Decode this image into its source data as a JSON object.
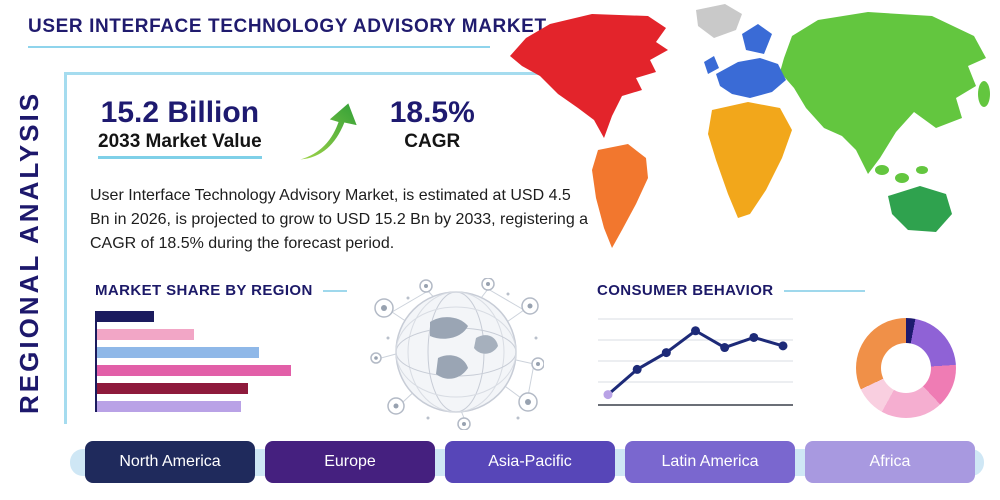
{
  "page": {
    "title": "USER INTERFACE TECHNOLOGY ADVISORY MARKET",
    "side_label": "REGIONAL ANALYSIS"
  },
  "stats": {
    "market_value": "15.2 Billion",
    "market_value_label": "2033 Market Value",
    "cagr_value": "18.5%",
    "cagr_label": "CAGR"
  },
  "description": "User Interface Technology Advisory Market, is estimated at USD 4.5 Bn in 2026, is projected to grow to USD 15.2 Bn by 2033, registering a CAGR of 18.5% during the forecast period.",
  "sections": {
    "market_share_title": "MARKET SHARE BY REGION",
    "consumer_behavior_title": "CONSUMER BEHAVIOR"
  },
  "regions": [
    {
      "label": "North America",
      "color": "#1f2a5c"
    },
    {
      "label": "Europe",
      "color": "#45207f"
    },
    {
      "label": "Asia-Pacific",
      "color": "#5746b8"
    },
    {
      "label": "Latin America",
      "color": "#7a67cf"
    },
    {
      "label": "Africa",
      "color": "#a899e0"
    }
  ],
  "map": {
    "continents": [
      {
        "name": "north-america",
        "color": "#e3242b"
      },
      {
        "name": "greenland",
        "color": "#c9c9c9"
      },
      {
        "name": "south-america",
        "color": "#f2772e"
      },
      {
        "name": "europe",
        "color": "#3a6bd6"
      },
      {
        "name": "africa",
        "color": "#f2a71b"
      },
      {
        "name": "asia",
        "color": "#63c63f"
      },
      {
        "name": "australia",
        "color": "#2fa24e"
      }
    ]
  },
  "chart_data": [
    {
      "type": "bar",
      "orientation": "horizontal",
      "title": "Market Share by Region",
      "values": [
        16,
        27,
        45,
        54,
        42,
        40
      ],
      "estimated": true,
      "xlim": [
        0,
        60
      ],
      "colors": [
        "#1b1b5e",
        "#f2a6c6",
        "#8fb8e8",
        "#e25fa8",
        "#8e1a3c",
        "#b9a2e6"
      ]
    },
    {
      "type": "line",
      "title": "Consumer Behavior",
      "x": [
        1,
        2,
        3,
        4,
        5,
        6,
        7
      ],
      "values": [
        1,
        4,
        6,
        8.6,
        6.6,
        7.8,
        6.8
      ],
      "estimated": true,
      "ylim": [
        0,
        10
      ],
      "grid": true,
      "line_color": "#1d2a78",
      "first_marker_color": "#b9a2e6"
    },
    {
      "type": "pie",
      "title": "Regional distribution donut",
      "donut_hole": 0.5,
      "estimated": true,
      "slices": [
        {
          "value": 3,
          "color": "#1d1a6e"
        },
        {
          "value": 21,
          "color": "#8f62d6"
        },
        {
          "value": 14,
          "color": "#ef7cb4"
        },
        {
          "value": 20,
          "color": "#f5aed0"
        },
        {
          "value": 10,
          "color": "#f9cfe0"
        },
        {
          "value": 32,
          "color": "#f09048"
        }
      ]
    }
  ],
  "colors": {
    "accent_navy": "#1e1a70",
    "rule_teal": "#8fd4ec",
    "arrow_green": "#3aa13a",
    "strip_blue": "#cfe7f5"
  }
}
